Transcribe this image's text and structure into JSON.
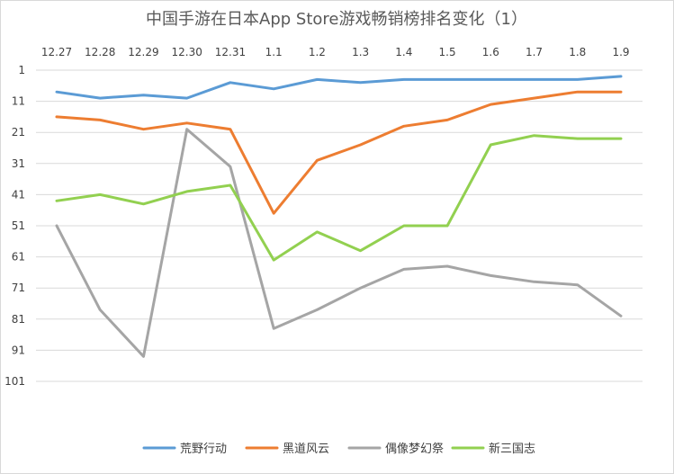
{
  "chart_data": {
    "type": "line",
    "title": "中国手游在日本App Store游戏畅销榜排名变化（1）",
    "categories": [
      "12.27",
      "12.28",
      "12.29",
      "12.30",
      "12.31",
      "1.1",
      "1.2",
      "1.3",
      "1.4",
      "1.5",
      "1.6",
      "1.7",
      "1.8",
      "1.9"
    ],
    "y_axis": {
      "reversed": true,
      "ticks": [
        "1",
        "11",
        "21",
        "31",
        "41",
        "51",
        "61",
        "71",
        "81",
        "91",
        "101"
      ],
      "ylim": [
        1,
        101
      ]
    },
    "x_axis_position": "top",
    "grid": "horizontal",
    "legend_position": "bottom",
    "series": [
      {
        "name": "荒野行动",
        "color": "#5B9BD5",
        "values": [
          8,
          10,
          9,
          10,
          5,
          7,
          4,
          5,
          4,
          4,
          4,
          4,
          4,
          3
        ]
      },
      {
        "name": "黑道风云",
        "color": "#ED7D31",
        "values": [
          16,
          17,
          20,
          18,
          20,
          47,
          30,
          25,
          19,
          17,
          12,
          10,
          8,
          8
        ]
      },
      {
        "name": "偶像梦幻祭",
        "color": "#A5A5A5",
        "values": [
          51,
          78,
          93,
          20,
          32,
          84,
          78,
          71,
          65,
          64,
          67,
          69,
          70,
          80
        ]
      },
      {
        "name": "新三国志",
        "color": "#92D050",
        "values": [
          43,
          41,
          44,
          40,
          38,
          62,
          53,
          59,
          51,
          51,
          25,
          22,
          23,
          23
        ]
      }
    ]
  }
}
